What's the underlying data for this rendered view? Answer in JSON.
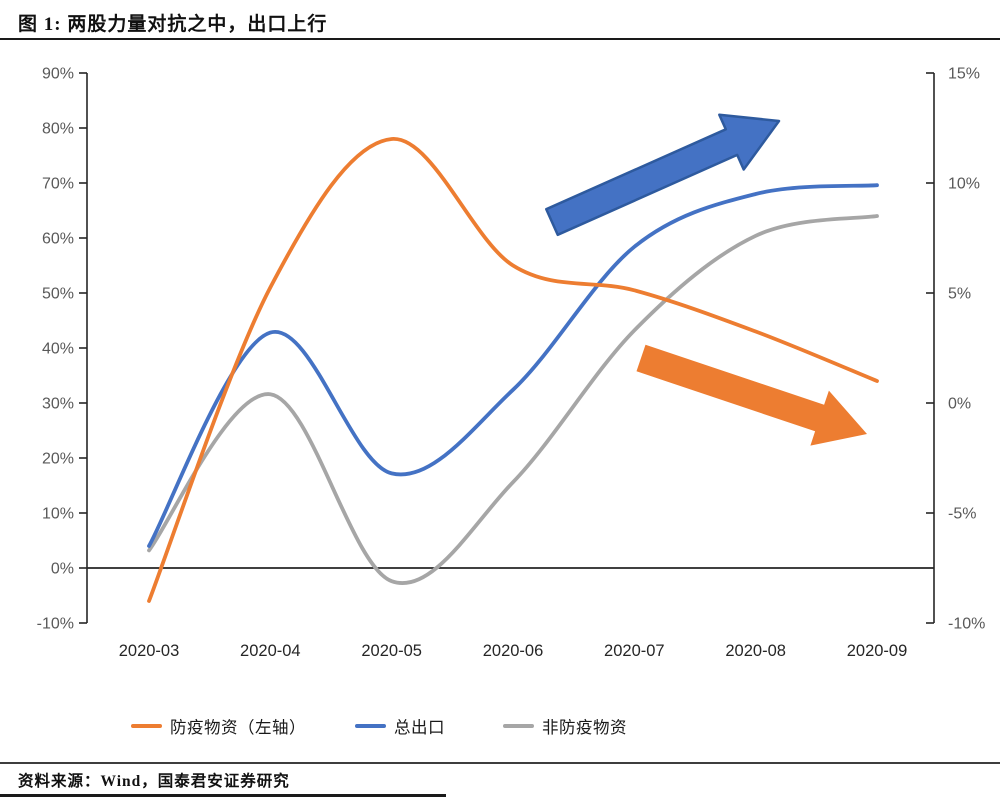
{
  "title": "图 1: 两股力量对抗之中，出口上行",
  "source": "资料来源：Wind，国泰君安证券研究",
  "colors": {
    "orange": "#ED7D31",
    "blue": "#4472C4",
    "gray": "#A6A6A6",
    "axis_line": "#262626",
    "zero_line": "#000000",
    "tick_label": "#595959",
    "month_label": "#262626",
    "arrow_blue_fill": "#4472C4",
    "arrow_blue_stroke": "#2E5A9E",
    "arrow_orange_fill": "#ED7D31"
  },
  "legend": {
    "items": [
      {
        "label": "防疫物资（左轴）",
        "color": "#ED7D31"
      },
      {
        "label": "总出口",
        "color": "#4472C4"
      },
      {
        "label": "非防疫物资",
        "color": "#A6A6A6"
      }
    ]
  },
  "chart_data": {
    "type": "line",
    "title": "两股力量对抗之中，出口上行",
    "categories": [
      "2020-03",
      "2020-04",
      "2020-05",
      "2020-06",
      "2020-07",
      "2020-08",
      "2020-09"
    ],
    "series": [
      {
        "name": "防疫物资（左轴）",
        "axis": "left",
        "color": "#ED7D31",
        "values": [
          -6,
          51,
          78,
          55,
          50.5,
          43,
          34
        ]
      },
      {
        "name": "总出口",
        "axis": "right",
        "color": "#4472C4",
        "values": [
          -6.5,
          3.2,
          -3.2,
          0.6,
          7.1,
          9.5,
          9.9
        ]
      },
      {
        "name": "非防疫物资",
        "axis": "right",
        "color": "#A6A6A6",
        "values": [
          -6.7,
          0.4,
          -8.1,
          -3.6,
          3.3,
          7.6,
          8.5
        ]
      }
    ],
    "left_axis": {
      "min": -10,
      "max": 90,
      "ticks": [
        90,
        80,
        70,
        60,
        50,
        40,
        30,
        20,
        10,
        0,
        -10
      ],
      "format": "percent"
    },
    "right_axis": {
      "min": -10,
      "max": 15,
      "ticks": [
        15,
        10,
        5,
        0,
        -5,
        -10
      ],
      "format": "percent"
    },
    "grid": false,
    "legend_position": "bottom",
    "zero_baseline": true,
    "annotations": [
      {
        "type": "arrow",
        "direction": "up-right",
        "color": "#4472C4",
        "meaning": "总出口上行"
      },
      {
        "type": "arrow",
        "direction": "down-right",
        "color": "#ED7D31",
        "meaning": "防疫物资下行"
      }
    ]
  }
}
